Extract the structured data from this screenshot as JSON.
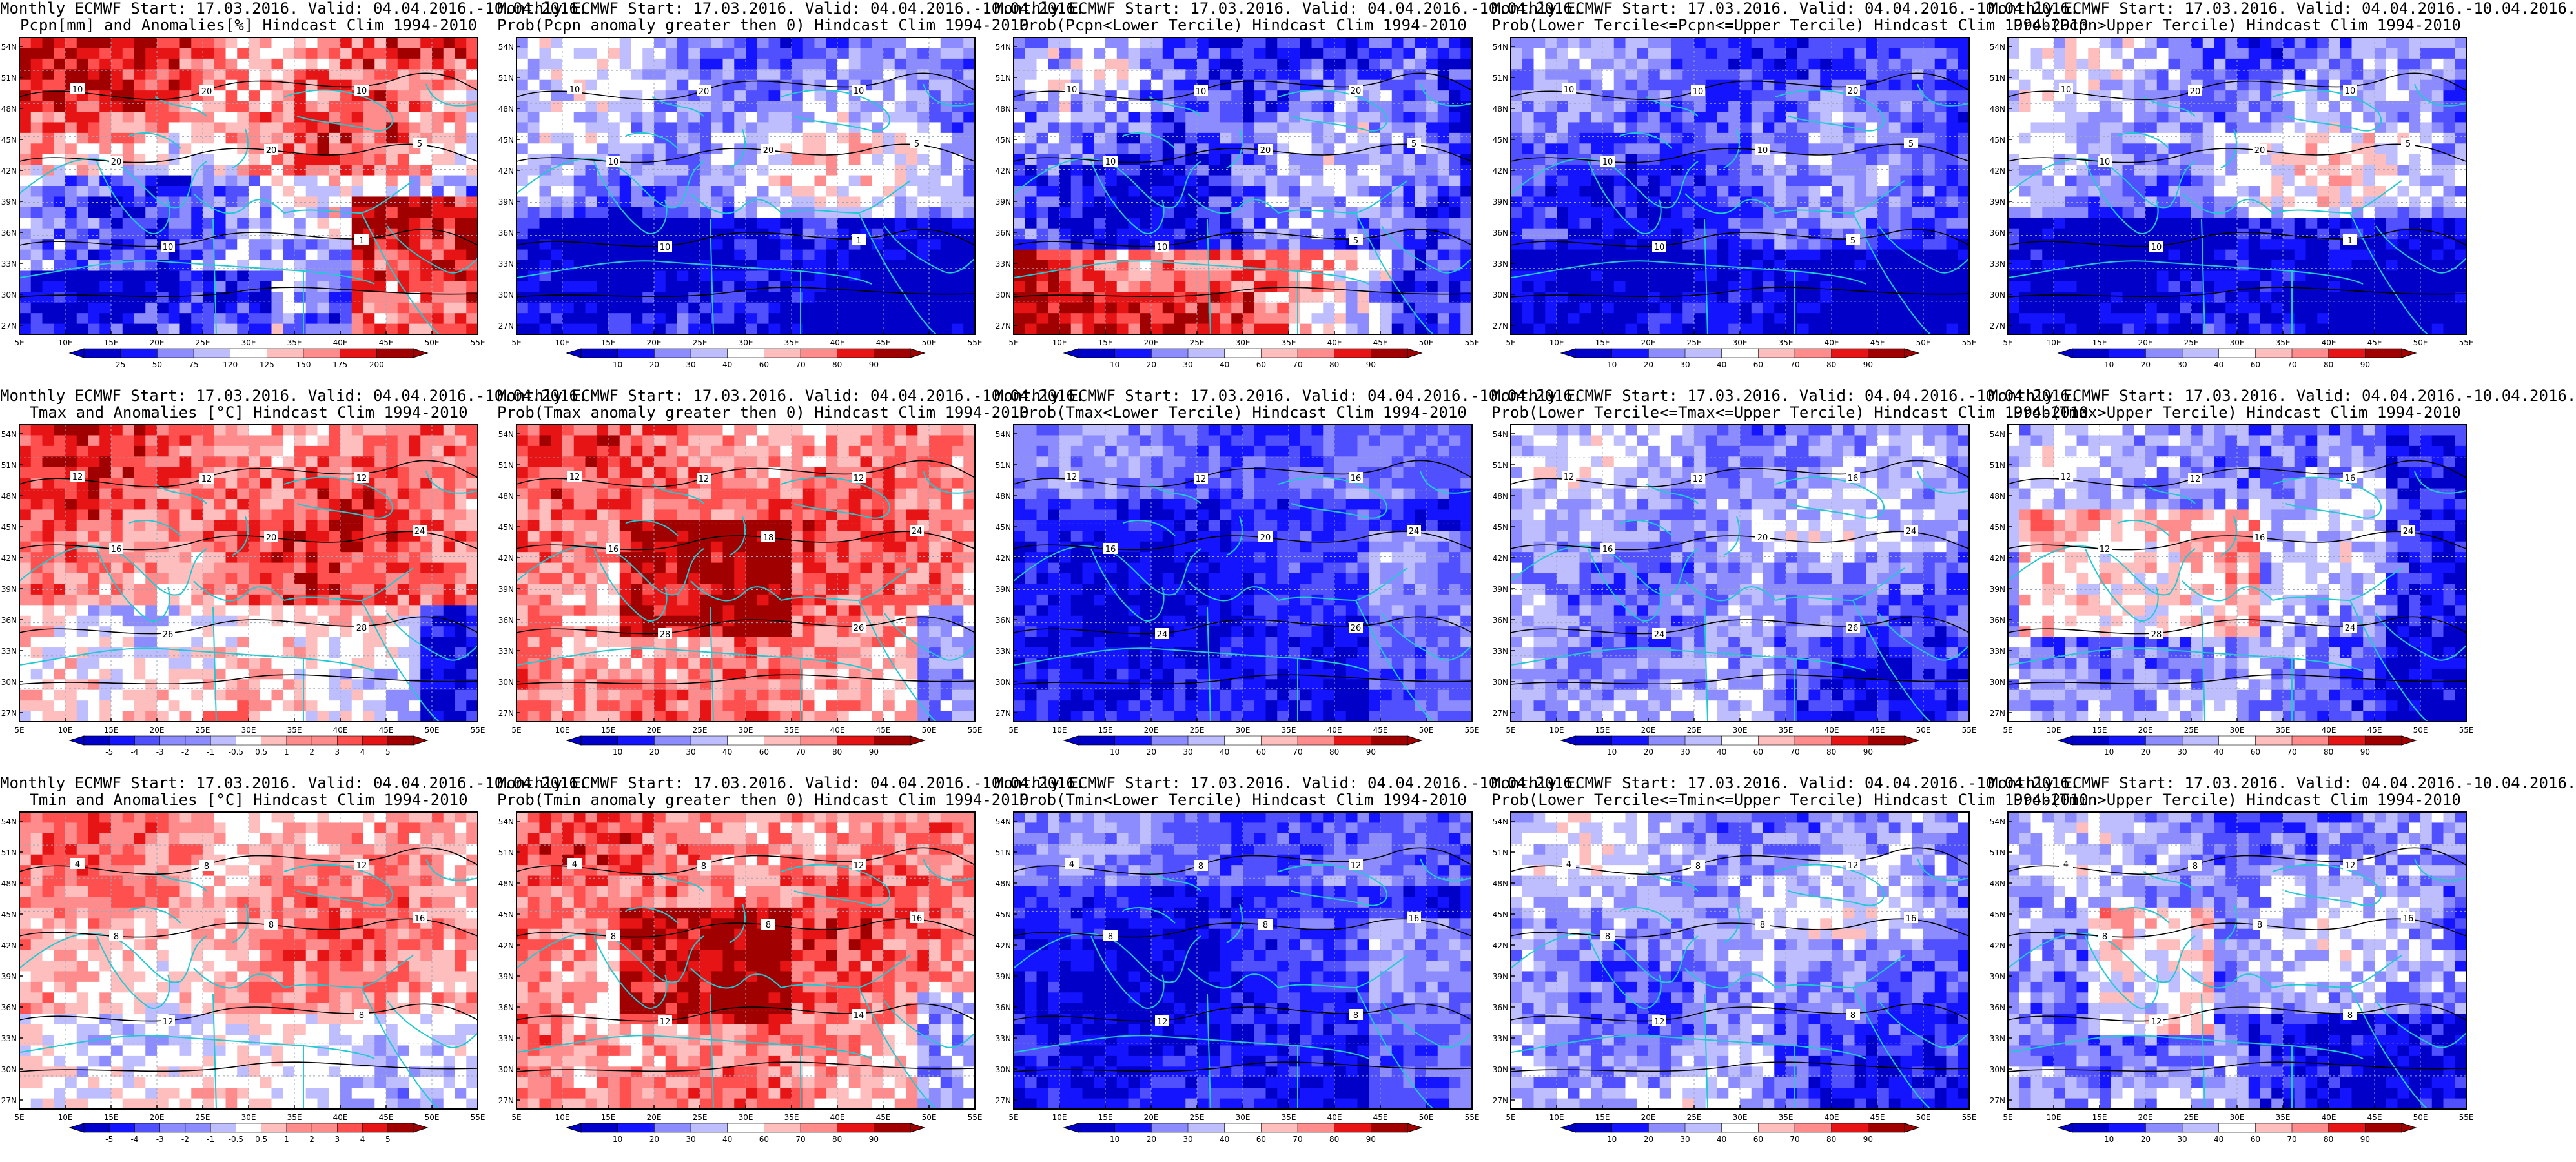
{
  "figure": {
    "lat_ticks": [
      "54N",
      "51N",
      "48N",
      "45N",
      "42N",
      "39N",
      "36N",
      "33N",
      "30N",
      "27N"
    ],
    "lon_ticks": [
      "5E",
      "10E",
      "15E",
      "20E",
      "25E",
      "30E",
      "35E",
      "40E",
      "45E",
      "50E",
      "55E"
    ],
    "cb_anom_pcpn": [
      "25",
      "50",
      "75",
      "120",
      "125",
      "150",
      "175",
      "200"
    ],
    "cb_anom_temp": [
      "-5",
      "-4",
      "-3",
      "-2",
      "-1",
      "-0.5",
      "0.5",
      "1",
      "2",
      "3",
      "4",
      "5"
    ],
    "cb_prob": [
      "10",
      "20",
      "30",
      "40",
      "60",
      "70",
      "80",
      "90"
    ]
  },
  "panels": [
    {
      "id": "r1c1",
      "line1": "Monthly ECMWF Start: 17.03.2016. Valid: 04.04.2016.-10.04.2016.",
      "line2": "Pcpn[mm] and Anomalies[%] Hindcast Clim 1994-2010",
      "cbar": "cb_anom_pcpn",
      "scheme": "pcpn",
      "contours": [
        "10",
        "20",
        "10",
        "20",
        "20",
        "5",
        "10",
        "1"
      ]
    },
    {
      "id": "r1c2",
      "line1": "Monthly ECMWF Start: 17.03.2016. Valid: 04.04.2016.-10.04.2016.",
      "line2": "Prob(Pcpn anomaly greater then 0) Hindcast Clim 1994-2010",
      "cbar": "cb_prob",
      "scheme": "blueish",
      "contours": [
        "10",
        "20",
        "10",
        "10",
        "20",
        "5",
        "10",
        "1"
      ]
    },
    {
      "id": "r1c3",
      "line1": "Monthly ECMWF Start: 17.03.2016. Valid: 04.04.2016.-10.04.2016.",
      "line2": "Prob(Pcpn<Lower Tercile) Hindcast Clim 1994-2010",
      "cbar": "cb_prob",
      "scheme": "pcpn_lower",
      "contours": [
        "10",
        "10",
        "20",
        "10",
        "20",
        "5",
        "10",
        "5"
      ]
    },
    {
      "id": "r1c4",
      "line1": "Monthly ECMWF Start: 17.03.2016. Valid: 04.04.2016.-10.04.2016.",
      "line2": "Prob(Lower Tercile<=Pcpn<=Upper Tercile) Hindcast Clim 1994-2010",
      "cbar": "cb_prob",
      "scheme": "blue",
      "contours": [
        "10",
        "10",
        "20",
        "10",
        "10",
        "5",
        "10",
        "5"
      ]
    },
    {
      "id": "r1c5",
      "line1": "Monthly ECMWF Start: 17.03.2016. Valid: 04.04.2016.-10.04.2016.",
      "line2": "Prob(Pcpn>Upper Tercile) Hindcast Clim 1994-2010",
      "cbar": "cb_prob",
      "scheme": "blueish",
      "contours": [
        "10",
        "20",
        "10",
        "10",
        "20",
        "5",
        "10",
        "1"
      ]
    },
    {
      "id": "r2c1",
      "line1": "Monthly ECMWF Start: 17.03.2016. Valid: 04.04.2016.-10.04.2016.",
      "line2": "Tmax and Anomalies [°C] Hindcast Clim 1994-2010",
      "cbar": "cb_anom_temp",
      "scheme": "warm",
      "contours": [
        "12",
        "12",
        "12",
        "16",
        "20",
        "24",
        "26",
        "28"
      ]
    },
    {
      "id": "r2c2",
      "line1": "Monthly ECMWF Start: 17.03.2016. Valid: 04.04.2016.-10.04.2016.",
      "line2": "Prob(Tmax anomaly greater then 0) Hindcast Clim 1994-2010",
      "cbar": "cb_prob",
      "scheme": "warm2",
      "contours": [
        "12",
        "12",
        "12",
        "16",
        "18",
        "24",
        "28",
        "26"
      ]
    },
    {
      "id": "r2c3",
      "line1": "Monthly ECMWF Start: 17.03.2016. Valid: 04.04.2016.-10.04.2016.",
      "line2": "Prob(Tmax<Lower Tercile) Hindcast Clim 1994-2010",
      "cbar": "cb_prob",
      "scheme": "deepblue",
      "contours": [
        "12",
        "12",
        "16",
        "16",
        "20",
        "24",
        "24",
        "26"
      ]
    },
    {
      "id": "r2c4",
      "line1": "Monthly ECMWF Start: 17.03.2016. Valid: 04.04.2016.-10.04.2016.",
      "line2": "Prob(Lower Tercile<=Tmax<=Upper Tercile) Hindcast Clim 1994-2010",
      "cbar": "cb_prob",
      "scheme": "lightblue",
      "contours": [
        "12",
        "12",
        "16",
        "16",
        "20",
        "24",
        "24",
        "26"
      ]
    },
    {
      "id": "r2c5",
      "line1": "Monthly ECMWF Start: 17.03.2016. Valid: 04.04.2016.-10.04.2016.",
      "line2": "Prob(Tmax>Upper Tercile) Hindcast Clim 1994-2010",
      "cbar": "cb_prob",
      "scheme": "mixed",
      "contours": [
        "12",
        "12",
        "16",
        "12",
        "16",
        "24",
        "28",
        "24"
      ]
    },
    {
      "id": "r3c1",
      "line1": "Monthly ECMWF Start: 17.03.2016. Valid: 04.04.2016.-10.04.2016.",
      "line2": "Tmin and Anomalies [°C] Hindcast Clim 1994-2010",
      "cbar": "cb_anom_temp",
      "scheme": "warmlight",
      "contours": [
        "4",
        "8",
        "12",
        "8",
        "8",
        "16",
        "12",
        "8"
      ]
    },
    {
      "id": "r3c2",
      "line1": "Monthly ECMWF Start: 17.03.2016. Valid: 04.04.2016.-10.04.2016.",
      "line2": "Prob(Tmin anomaly greater then 0) Hindcast Clim 1994-2010",
      "cbar": "cb_prob",
      "scheme": "warm2",
      "contours": [
        "4",
        "8",
        "12",
        "8",
        "8",
        "16",
        "12",
        "14"
      ]
    },
    {
      "id": "r3c3",
      "line1": "Monthly ECMWF Start: 17.03.2016. Valid: 04.04.2016.-10.04.2016.",
      "line2": "Prob(Tmin<Lower Tercile) Hindcast Clim 1994-2010",
      "cbar": "cb_prob",
      "scheme": "deepblue",
      "contours": [
        "4",
        "8",
        "12",
        "8",
        "8",
        "16",
        "12",
        "8"
      ]
    },
    {
      "id": "r3c4",
      "line1": "Monthly ECMWF Start: 17.03.2016. Valid: 04.04.2016.-10.04.2016.",
      "line2": "Prob(Lower Tercile<=Tmin<=Upper Tercile) Hindcast Clim 1994-2010",
      "cbar": "cb_prob",
      "scheme": "lightblue",
      "contours": [
        "4",
        "8",
        "12",
        "8",
        "8",
        "16",
        "12",
        "8"
      ]
    },
    {
      "id": "r3c5",
      "line1": "Monthly ECMWF Start: 17.03.2016. Valid: 04.04.2016.-10.04.2016.",
      "line2": "Prob(Tmin>Upper Tercile) Hindcast Clim 1994-2010",
      "cbar": "cb_prob",
      "scheme": "mixed2",
      "contours": [
        "4",
        "8",
        "12",
        "8",
        "8",
        "16",
        "12",
        "8"
      ]
    }
  ]
}
